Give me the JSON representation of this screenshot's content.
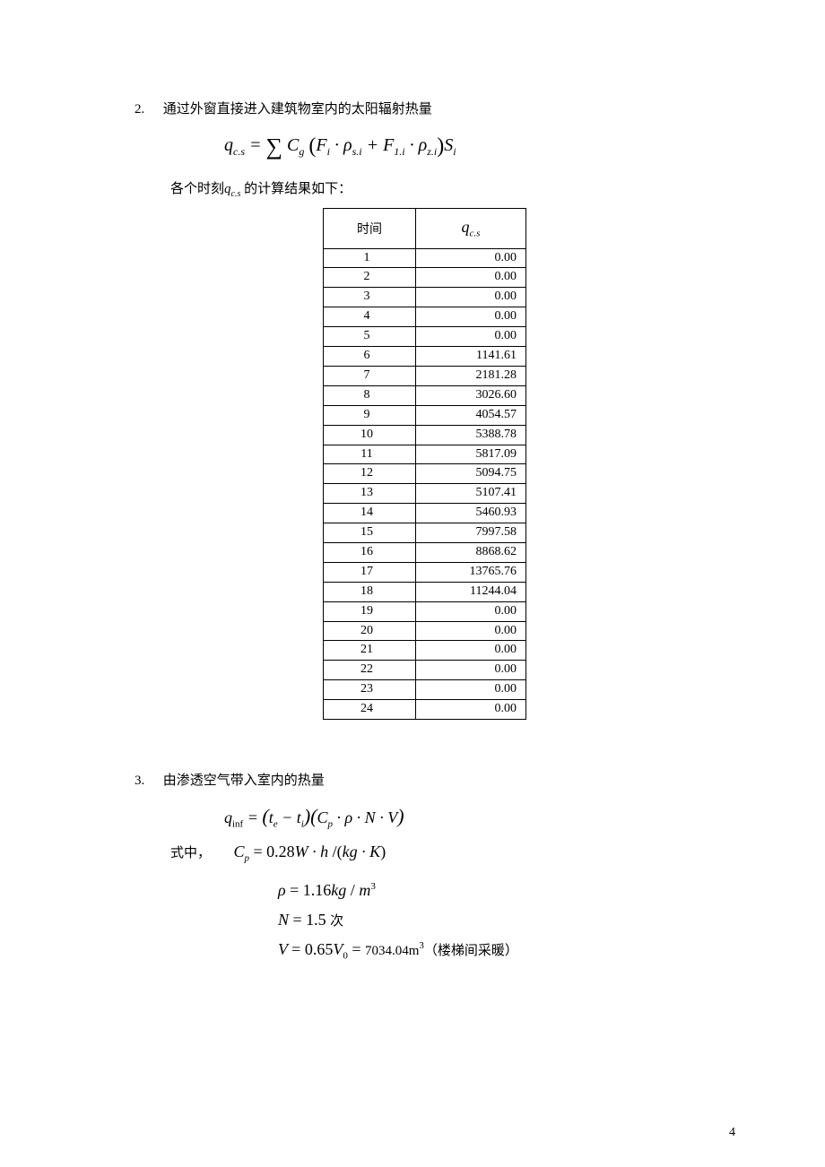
{
  "section2": {
    "num": "2.",
    "title": "通过外窗直接进入建筑物室内的太阳辐射热量",
    "formula_html": "<span>q</span><span class='sub'>c.s</span> = <span class='sum'>∑</span> <span>C</span><span class='sub'>g</span> <span class='paren'>(</span><span>F</span><span class='sub'>i</span> · <span>ρ</span><span class='sub'>s.i</span> + <span>F</span><span class='sub'>1.i</span> · <span>ρ</span><span class='sub'>z.i</span><span class='paren'>)</span><span>S</span><span class='sub'>i</span>",
    "intro_prefix": "各个时刻",
    "intro_var": "q",
    "intro_var_sub": "c.s",
    "intro_suffix": " 的计算结果如下：",
    "table": {
      "col1_header": "时间",
      "col2_header_var": "q",
      "col2_header_sub": "c.s",
      "rows": [
        {
          "t": "1",
          "v": "0.00"
        },
        {
          "t": "2",
          "v": "0.00"
        },
        {
          "t": "3",
          "v": "0.00"
        },
        {
          "t": "4",
          "v": "0.00"
        },
        {
          "t": "5",
          "v": "0.00"
        },
        {
          "t": "6",
          "v": "1141.61"
        },
        {
          "t": "7",
          "v": "2181.28"
        },
        {
          "t": "8",
          "v": "3026.60"
        },
        {
          "t": "9",
          "v": "4054.57"
        },
        {
          "t": "10",
          "v": "5388.78"
        },
        {
          "t": "11",
          "v": "5817.09"
        },
        {
          "t": "12",
          "v": "5094.75"
        },
        {
          "t": "13",
          "v": "5107.41"
        },
        {
          "t": "14",
          "v": "5460.93"
        },
        {
          "t": "15",
          "v": "7997.58"
        },
        {
          "t": "16",
          "v": "8868.62"
        },
        {
          "t": "17",
          "v": "13765.76"
        },
        {
          "t": "18",
          "v": "11244.04"
        },
        {
          "t": "19",
          "v": "0.00"
        },
        {
          "t": "20",
          "v": "0.00"
        },
        {
          "t": "21",
          "v": "0.00"
        },
        {
          "t": "22",
          "v": "0.00"
        },
        {
          "t": "23",
          "v": "0.00"
        },
        {
          "t": "24",
          "v": "0.00"
        }
      ]
    }
  },
  "section3": {
    "num": "3.",
    "title": "由渗透空气带入室内的热量",
    "eq_main_html": "<span>q</span><span class='sub'>inf</span> = <span class='paren' style='font-size:22px'>(</span><span>t</span><span class='subit'>e</span> − <span>t</span><span class='subit'>i</span><span class='paren' style='font-size:22px'>)(</span><span>C</span><span class='subit'>p</span> · <span>ρ</span> · <span>N</span> · <span>V</span><span class='paren' style='font-size:22px'>)</span>",
    "eq_where_label": "式中，",
    "eq_cp_html": "<span>C</span><span class='subit'>p</span> <span class='rm'>= 0.28</span><span>W</span> · <span>h</span> <span class='rm'>/(</span><span>kg</span> · <span>K</span><span class='rm'>)</span>",
    "eq_rho_html": "<span>ρ</span> <span class='rm'>= 1.16</span><span>kg</span> <span class='rm'>/</span> <span>m</span><span class='sup'>3</span>",
    "eq_n_html": "<span>N</span> <span class='rm'>= 1.5</span> <span class='cn'>次</span>",
    "eq_v_html": "<span>V</span> <span class='rm'>= 0.65</span><span>V</span><span class='sub'>0</span> <span class='rm'>=</span> <span class='cn' style='font-family:inherit;font-style:normal'>7034.04m</span><span class='sup'>3</span><span class='cn'>（楼梯间采暖）</span>"
  },
  "page_number": "4",
  "colors": {
    "text": "#000000",
    "background": "#ffffff",
    "border": "#000000"
  }
}
